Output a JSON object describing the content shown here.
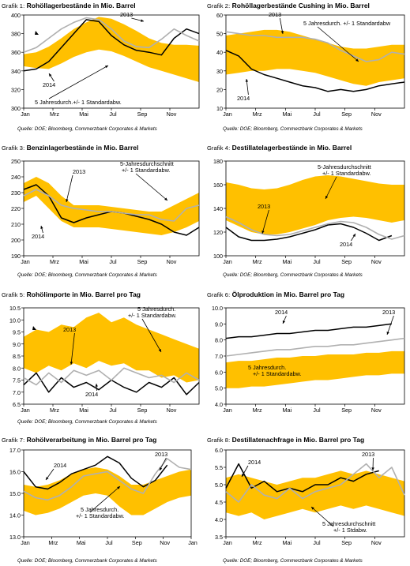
{
  "months": [
    "Jan",
    "Mrz",
    "Mai",
    "Jul",
    "Sep",
    "Nov"
  ],
  "grafik_label": "Grafik",
  "colors": {
    "band": "#ffc000",
    "series_2014": "#000000",
    "series_2013": "#b0b0b0"
  },
  "charts": [
    {
      "id": "g1",
      "num": "1:",
      "title": "Rohöllagerbestände in Mio. Barrel",
      "source": "Quelle: DOE; Bloomberg, Commerzbank Corporates & Markets",
      "chart_data": {
        "type": "line",
        "ylim": [
          300,
          400
        ],
        "yticks": [
          300,
          320,
          340,
          360,
          380,
          400
        ],
        "ytick_decimals": 0,
        "xlabels": [
          "Jan",
          "Mrz",
          "Mai",
          "Jul",
          "Sep",
          "Nov"
        ],
        "band": {
          "lower": [
            345,
            343,
            342,
            348,
            355,
            360,
            363,
            361,
            356,
            350,
            344,
            340,
            336,
            332,
            328
          ],
          "upper": [
            358,
            360,
            366,
            375,
            385,
            392,
            398,
            396,
            390,
            383,
            375,
            370,
            368,
            368,
            367
          ]
        },
        "series": [
          {
            "name": "2013",
            "values": [
              360,
              365,
              375,
              385,
              392,
              397,
              395,
              385,
              372,
              366,
              365,
              374,
              385,
              378,
              372
            ]
          },
          {
            "name": "2014",
            "values": [
              340,
              342,
              350,
              365,
              380,
              395,
              393,
              378,
              368,
              362,
              360,
              357,
              375,
              385,
              380
            ]
          }
        ],
        "annotations": [
          {
            "text": "2013",
            "series": "2013"
          },
          {
            "text": "2014",
            "series": "2014"
          },
          {
            "text": "5 Jahresdurch.+/- 1 Standardabw.",
            "series": "band"
          }
        ]
      }
    },
    {
      "id": "g2",
      "num": "2:",
      "title": "Rohöllagerbestände Cushing in Mio. Barrel",
      "source": "Quelle: DOE; Bloomberg, Commerzbank Corporates & Markets",
      "chart_data": {
        "type": "line",
        "ylim": [
          10,
          60
        ],
        "yticks": [
          10,
          20,
          30,
          40,
          50,
          60
        ],
        "ytick_decimals": 0,
        "xlabels": [
          "Jan",
          "Mrz",
          "Mai",
          "Jul",
          "Sep",
          "Nov"
        ],
        "band": {
          "lower": [
            28,
            29,
            30,
            30,
            31,
            31,
            30,
            29,
            27,
            25,
            23,
            22,
            24,
            25,
            26
          ],
          "upper": [
            49,
            50,
            51,
            52,
            52,
            51,
            49,
            47,
            45,
            43,
            42,
            42,
            43,
            44,
            44
          ]
        },
        "series": [
          {
            "name": "2013",
            "values": [
              51,
              50,
              49,
              49,
              48,
              48,
              48,
              47,
              45,
              41,
              38,
              35,
              36,
              40,
              39
            ]
          },
          {
            "name": "2014",
            "values": [
              41,
              38,
              31,
              28,
              26,
              24,
              22,
              21,
              19,
              20,
              19,
              20,
              22,
              23,
              24
            ]
          }
        ],
        "annotations": [
          {
            "text": "2013",
            "series": "2013"
          },
          {
            "text": "2014",
            "series": "2014"
          },
          {
            "text": "5 Jahresdurch. +/- 1 Standardabw",
            "series": "band"
          }
        ]
      }
    },
    {
      "id": "g3",
      "num": "3:",
      "title": "Benzinlagerbestände in Mio. Barrel",
      "source": "Quelle: DOE; Bloomberg, Commerzbank Corporates & Markets",
      "chart_data": {
        "type": "line",
        "ylim": [
          190,
          250
        ],
        "yticks": [
          190,
          200,
          210,
          220,
          230,
          240,
          250
        ],
        "ytick_decimals": 0,
        "xlabels": [
          "Jan",
          "Mrz",
          "Mai",
          "Jul",
          "Sep",
          "Nov"
        ],
        "band": {
          "lower": [
            224,
            228,
            220,
            212,
            208,
            208,
            208,
            207,
            206,
            205,
            204,
            203,
            205,
            208,
            212
          ],
          "upper": [
            236,
            240,
            236,
            228,
            222,
            222,
            222,
            221,
            220,
            219,
            218,
            218,
            222,
            226,
            230
          ]
        },
        "series": [
          {
            "name": "2013",
            "values": [
              228,
              232,
              228,
              222,
              220,
              219,
              218,
              218,
              217,
              216,
              216,
              213,
              212,
              220,
              222
            ]
          },
          {
            "name": "2014",
            "values": [
              232,
              235,
              228,
              214,
              211,
              214,
              216,
              218,
              217,
              215,
              213,
              210,
              205,
              203,
              208
            ]
          }
        ],
        "annotations": [
          {
            "text": "2013",
            "series": "2013"
          },
          {
            "text": "2014",
            "series": "2014"
          },
          {
            "text": "5-Jahresdurchschnitt",
            "series": "band"
          },
          {
            "text": "+/- 1 Standardabw.",
            "series": "band"
          }
        ]
      }
    },
    {
      "id": "g4",
      "num": "4:",
      "title": "Destillatelagerbestände in Mio. Barrel",
      "source": "Quelle: DOE; Bloomberg, Commerzbank Corporates & Markets",
      "chart_data": {
        "type": "line",
        "ylim": [
          100,
          180
        ],
        "yticks": [
          100,
          120,
          140,
          160,
          180
        ],
        "ytick_decimals": 0,
        "xlabels": [
          "Jan",
          "Mrz",
          "Mai",
          "Jul",
          "Sep",
          "Nov"
        ],
        "band": {
          "lower": [
            130,
            125,
            120,
            118,
            118,
            120,
            123,
            126,
            130,
            132,
            133,
            132,
            130,
            128,
            130
          ],
          "upper": [
            162,
            160,
            157,
            156,
            157,
            160,
            164,
            167,
            168,
            167,
            165,
            163,
            161,
            160,
            160
          ]
        },
        "series": [
          {
            "name": "2013",
            "values": [
              133,
              128,
              122,
              118,
              117,
              118,
              121,
              124,
              127,
              129,
              128,
              124,
              118,
              114,
              117
            ]
          },
          {
            "name": "2014",
            "values": [
              124,
              116,
              113,
              113,
              114,
              116,
              119,
              122,
              126,
              127,
              124,
              119,
              113,
              117,
              null
            ]
          }
        ],
        "annotations": [
          {
            "text": "2013",
            "series": "2013"
          },
          {
            "text": "2014",
            "series": "2014"
          },
          {
            "text": "5-Jahresdurchschnitt",
            "series": "band"
          },
          {
            "text": "+/- 1 Standardabw.",
            "series": "band"
          }
        ]
      }
    },
    {
      "id": "g5",
      "num": "5:",
      "title": "Rohölimporte in Mio. Barrel pro Tag",
      "source": "Quelle: DOE; Bloomberg, Commerzbank Corporates & Markets",
      "chart_data": {
        "type": "line",
        "ylim": [
          6.5,
          10.5
        ],
        "yticks": [
          6.5,
          7.0,
          7.5,
          8.0,
          8.5,
          9.0,
          9.5,
          10.0,
          10.5
        ],
        "ytick_decimals": 1,
        "xlabels": [
          "Jan",
          "Mrz",
          "Mai",
          "Jul",
          "Sep",
          "Nov"
        ],
        "band": {
          "lower": [
            8.0,
            7.8,
            8.1,
            7.9,
            8.2,
            8.0,
            8.3,
            8.1,
            8.2,
            7.9,
            7.9,
            7.6,
            7.7,
            7.4,
            7.5
          ],
          "upper": [
            9.3,
            9.6,
            9.5,
            9.8,
            9.7,
            10.1,
            10.3,
            9.9,
            10.1,
            9.8,
            9.6,
            9.4,
            9.2,
            9.0,
            8.8
          ]
        },
        "series": [
          {
            "name": "2013",
            "values": [
              7.6,
              7.3,
              7.8,
              7.4,
              7.9,
              7.7,
              7.9,
              7.5,
              8.0,
              7.8,
              7.6,
              7.7,
              7.4,
              7.8,
              7.5
            ]
          },
          {
            "name": "2014",
            "values": [
              7.3,
              7.8,
              7.0,
              7.6,
              7.2,
              7.4,
              7.1,
              7.5,
              7.2,
              7.0,
              7.4,
              7.2,
              7.6,
              6.9,
              7.4
            ]
          }
        ],
        "annotations": [
          {
            "text": "2013",
            "series": "2013"
          },
          {
            "text": "2014",
            "series": "2014"
          },
          {
            "text": "5 Jahresdurch.",
            "series": "band"
          },
          {
            "text": "+/- 1 Standardabw.",
            "series": "band"
          }
        ]
      }
    },
    {
      "id": "g6",
      "num": "6:",
      "title": "Ölproduktion in Mio. Barrel pro Tag",
      "source": "",
      "chart_data": {
        "type": "line",
        "ylim": [
          4.0,
          10.0
        ],
        "yticks": [
          4.0,
          5.0,
          6.0,
          7.0,
          8.0,
          9.0,
          10.0
        ],
        "ytick_decimals": 1,
        "xlabels": [
          "Jan",
          "Mrz",
          "Mai",
          "Jul",
          "Sep",
          "Nov"
        ],
        "band": {
          "lower": [
            5.0,
            5.0,
            5.1,
            5.1,
            5.2,
            5.3,
            5.4,
            5.5,
            5.5,
            5.6,
            5.7,
            5.8,
            5.8,
            5.9,
            5.9
          ],
          "upper": [
            6.6,
            6.7,
            6.7,
            6.8,
            6.9,
            6.9,
            7.0,
            7.0,
            7.1,
            7.1,
            7.1,
            7.2,
            7.2,
            7.3,
            7.3
          ]
        },
        "series": [
          {
            "name": "2013",
            "values": [
              7.0,
              7.1,
              7.2,
              7.3,
              7.4,
              7.4,
              7.5,
              7.6,
              7.6,
              7.7,
              7.7,
              7.8,
              7.9,
              8.0,
              8.1
            ]
          },
          {
            "name": "2014",
            "values": [
              8.1,
              8.2,
              8.2,
              8.3,
              8.4,
              8.4,
              8.5,
              8.6,
              8.6,
              8.7,
              8.8,
              8.8,
              8.9,
              9.0,
              null
            ]
          }
        ],
        "annotations": [
          {
            "text": "2014",
            "series": "2014"
          },
          {
            "text": "2013",
            "series": "2013"
          },
          {
            "text": "5 Jahresdurch.",
            "series": "band"
          },
          {
            "text": "+/- 1 Standardabw.",
            "series": "band"
          }
        ]
      }
    },
    {
      "id": "g7",
      "num": "7:",
      "title": "Rohölverarbeitung in Mio. Barrel pro Tag",
      "source": "Quelle: DOE; Bloomberg, Commerzbank Corporates & Markets",
      "chart_data": {
        "type": "line",
        "ylim": [
          13.0,
          17.0
        ],
        "yticks": [
          13.0,
          14.0,
          15.0,
          16.0,
          17.0
        ],
        "ytick_decimals": 1,
        "xlabels": [
          "Jan",
          "Mrz",
          "Mai",
          "Jul",
          "Sep",
          "Nov",
          "Jan"
        ],
        "band": {
          "lower": [
            14.2,
            14.0,
            14.1,
            14.3,
            14.6,
            14.9,
            15.0,
            14.9,
            14.4,
            14.0,
            14.0,
            14.3,
            14.6,
            14.8,
            14.9
          ],
          "upper": [
            15.4,
            15.3,
            15.4,
            15.6,
            15.9,
            16.1,
            16.2,
            16.1,
            15.8,
            15.4,
            15.4,
            15.6,
            15.8,
            16.0,
            16.1
          ]
        },
        "series": [
          {
            "name": "2013",
            "values": [
              15.1,
              14.8,
              14.7,
              14.9,
              15.3,
              15.8,
              15.9,
              16.0,
              15.6,
              15.2,
              15.0,
              15.9,
              16.6,
              16.2,
              16.1
            ]
          },
          {
            "name": "2014",
            "values": [
              16.0,
              15.3,
              15.2,
              15.5,
              15.9,
              16.1,
              16.3,
              16.7,
              16.4,
              15.7,
              15.3,
              15.6,
              16.3,
              null,
              null
            ]
          }
        ],
        "annotations": [
          {
            "text": "2014",
            "series": "2014"
          },
          {
            "text": "2013",
            "series": "2013"
          },
          {
            "text": "5 Jahresdurch.",
            "series": "band"
          },
          {
            "text": "+/- 1 Standardabw.",
            "series": "band"
          }
        ]
      }
    },
    {
      "id": "g8",
      "num": "8:",
      "title": "Destillatenachfrage in Mio. Barrel pro Tag",
      "source": "Quelle: DOE; Bloomberg, Commerzbank Corporates & Markets",
      "chart_data": {
        "type": "line",
        "ylim": [
          3.5,
          6.0
        ],
        "yticks": [
          3.5,
          4.0,
          4.5,
          5.0,
          5.5,
          6.0
        ],
        "ytick_decimals": 1,
        "xlabels": [
          "Jan",
          "Mrz",
          "Mai",
          "Jul",
          "Sep",
          "Nov"
        ],
        "band": {
          "lower": [
            4.2,
            4.1,
            4.2,
            4.0,
            4.1,
            4.2,
            4.3,
            4.2,
            4.3,
            4.4,
            4.3,
            4.4,
            4.3,
            4.2,
            4.1
          ],
          "upper": [
            5.2,
            5.3,
            5.2,
            5.1,
            5.0,
            5.1,
            5.2,
            5.2,
            5.3,
            5.4,
            5.3,
            5.4,
            5.3,
            5.2,
            5.1
          ]
        },
        "series": [
          {
            "name": "2013",
            "values": [
              4.8,
              4.5,
              5.0,
              4.7,
              4.6,
              4.9,
              4.6,
              4.8,
              4.9,
              5.0,
              5.3,
              5.6,
              5.2,
              5.5,
              4.7
            ]
          },
          {
            "name": "2014",
            "values": [
              4.9,
              5.6,
              4.9,
              5.1,
              4.8,
              4.9,
              4.8,
              5.0,
              5.0,
              5.2,
              5.1,
              5.3,
              5.4,
              null,
              null
            ]
          }
        ],
        "annotations": [
          {
            "text": "2014",
            "series": "2014"
          },
          {
            "text": "2013",
            "series": "2013"
          },
          {
            "text": "5 Jahresdurchschnitt",
            "series": "band"
          },
          {
            "text": "+/- 1 Stdabw.",
            "series": "band"
          }
        ]
      }
    }
  ]
}
